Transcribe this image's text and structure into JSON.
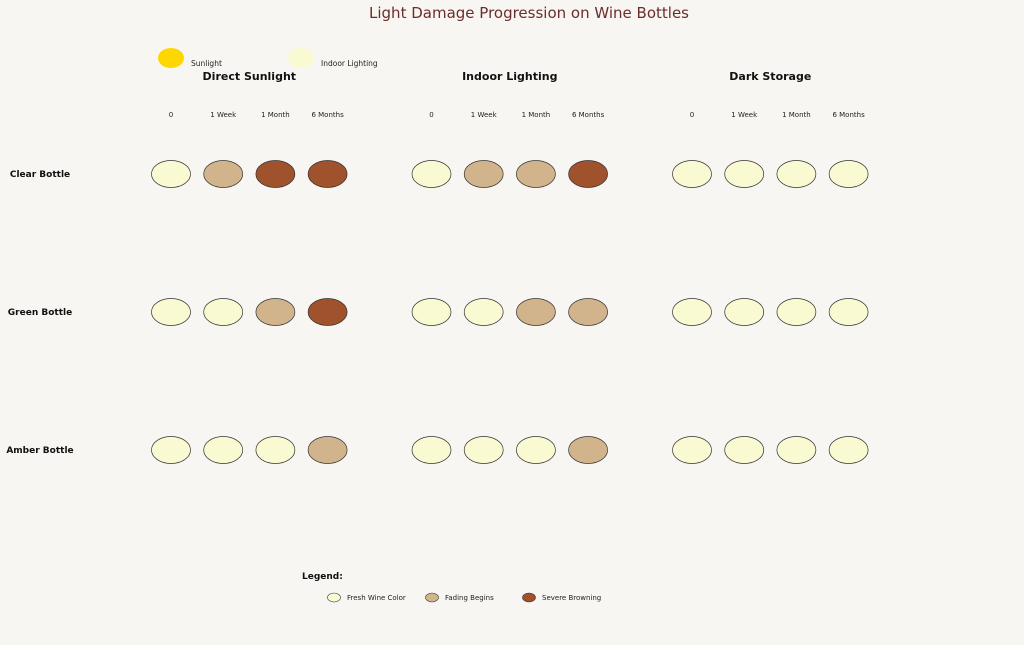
{
  "chart_data": {
    "type": "heatmap",
    "title": "Light Damage Progression on Wine Bottles",
    "top_legend": [
      {
        "label": "Sunlight",
        "color": "#FFD700"
      },
      {
        "label": "Indoor Lighting",
        "color": "#FAFAD2"
      }
    ],
    "panels": [
      "Direct Sunlight",
      "Indoor Lighting",
      "Dark Storage"
    ],
    "timepoints": [
      "0",
      "1 Week",
      "1 Month",
      "6 Months"
    ],
    "rows": [
      "Clear Bottle",
      "Green Bottle",
      "Amber Bottle"
    ],
    "state_scale": {
      "0": "Fresh Wine Color",
      "1": "Fading Begins",
      "2": "Severe Browning"
    },
    "values": {
      "Direct Sunlight": [
        [
          0,
          1,
          2,
          2
        ],
        [
          0,
          0,
          1,
          2
        ],
        [
          0,
          0,
          0,
          1
        ]
      ],
      "Indoor Lighting": [
        [
          0,
          1,
          1,
          2
        ],
        [
          0,
          0,
          1,
          1
        ],
        [
          0,
          0,
          0,
          1
        ]
      ],
      "Dark Storage": [
        [
          0,
          0,
          0,
          0
        ],
        [
          0,
          0,
          0,
          0
        ],
        [
          0,
          0,
          0,
          0
        ]
      ]
    },
    "legend_title": "Legend:",
    "legend": [
      {
        "label": "Fresh Wine Color",
        "color": "#FAFAD2"
      },
      {
        "label": "Fading Begins",
        "color": "#D2B48C"
      },
      {
        "label": "Severe Browning",
        "color": "#A0522D"
      }
    ]
  }
}
